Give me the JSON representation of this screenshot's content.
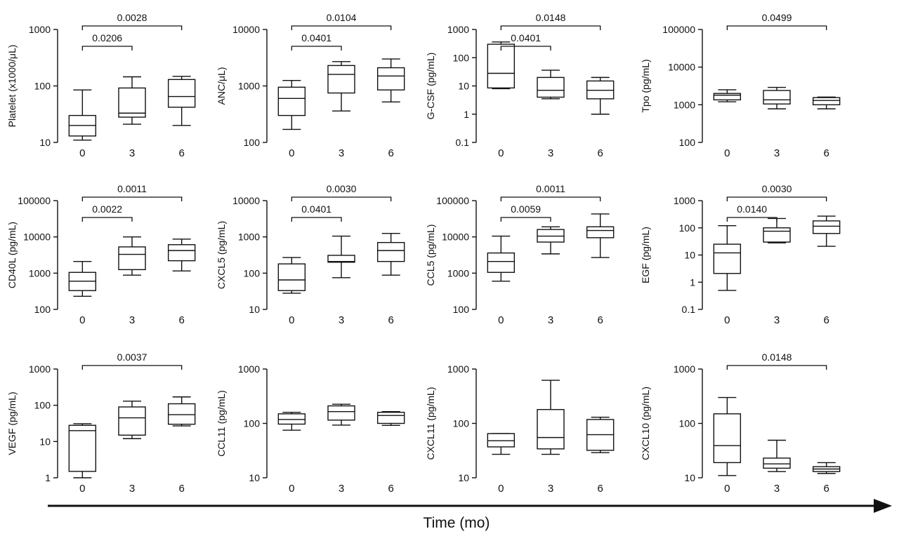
{
  "figure": {
    "xlabel": "Time (mo)",
    "colors": {
      "ink": "#111111",
      "background": "#ffffff"
    }
  },
  "chart_data": [
    {
      "type": "box",
      "ylabel": "Platelet (x1000/μL)",
      "scale": "log",
      "ylim": [
        10,
        1000
      ],
      "yticks": [
        "10",
        "100",
        "1000"
      ],
      "categories": [
        "0",
        "3",
        "6"
      ],
      "boxes": [
        {
          "min": 11,
          "q1": 13,
          "median": 20,
          "q3": 30,
          "max": 85
        },
        {
          "min": 21,
          "q1": 28,
          "median": 33,
          "q3": 92,
          "max": 145
        },
        {
          "min": 20,
          "q1": 42,
          "median": 65,
          "q3": 130,
          "max": 148
        }
      ],
      "comparisons": [
        {
          "from": 0,
          "to": 2,
          "label": "0.0028"
        },
        {
          "from": 0,
          "to": 1,
          "label": "0.0206"
        }
      ]
    },
    {
      "type": "box",
      "ylabel": "ANC/μL)",
      "scale": "log",
      "ylim": [
        100,
        10000
      ],
      "yticks": [
        "100",
        "1000",
        "10000"
      ],
      "categories": [
        "0",
        "3",
        "6"
      ],
      "boxes": [
        {
          "min": 170,
          "q1": 300,
          "median": 600,
          "q3": 950,
          "max": 1250
        },
        {
          "min": 360,
          "q1": 750,
          "median": 1600,
          "q3": 2300,
          "max": 2700
        },
        {
          "min": 520,
          "q1": 850,
          "median": 1500,
          "q3": 2100,
          "max": 3000
        }
      ],
      "comparisons": [
        {
          "from": 0,
          "to": 2,
          "label": "0.0104"
        },
        {
          "from": 0,
          "to": 1,
          "label": "0.0401"
        }
      ]
    },
    {
      "type": "box",
      "ylabel": "G-CSF (pg/mL)",
      "scale": "log",
      "ylim": [
        0.1,
        1000
      ],
      "yticks": [
        "0.1",
        "1",
        "10",
        "100",
        "1000"
      ],
      "categories": [
        "0",
        "3",
        "6"
      ],
      "boxes": [
        {
          "min": 8,
          "q1": 8.5,
          "median": 28,
          "q3": 300,
          "max": 360
        },
        {
          "min": 3.5,
          "q1": 4,
          "median": 7,
          "q3": 20,
          "max": 36
        },
        {
          "min": 1,
          "q1": 3.5,
          "median": 7,
          "q3": 15,
          "max": 20
        }
      ],
      "comparisons": [
        {
          "from": 0,
          "to": 2,
          "label": "0.0148"
        },
        {
          "from": 0,
          "to": 1,
          "label": "0.0401"
        }
      ]
    },
    {
      "type": "box",
      "ylabel": "Tpo (pg/mL)",
      "scale": "log",
      "ylim": [
        100,
        100000
      ],
      "yticks": [
        "100",
        "1000",
        "10000",
        "100000"
      ],
      "categories": [
        "0",
        "3",
        "6"
      ],
      "boxes": [
        {
          "min": 1200,
          "q1": 1350,
          "median": 1800,
          "q3": 2000,
          "max": 2500
        },
        {
          "min": 780,
          "q1": 1050,
          "median": 1350,
          "q3": 2400,
          "max": 2900
        },
        {
          "min": 780,
          "q1": 1000,
          "median": 1300,
          "q3": 1550,
          "max": 1600
        }
      ],
      "comparisons": [
        {
          "from": 0,
          "to": 2,
          "label": "0.0499"
        }
      ]
    },
    {
      "type": "box",
      "ylabel": "CD40L (pg/mL)",
      "scale": "log",
      "ylim": [
        100,
        100000
      ],
      "yticks": [
        "100",
        "1000",
        "10000",
        "100000"
      ],
      "categories": [
        "0",
        "3",
        "6"
      ],
      "boxes": [
        {
          "min": 230,
          "q1": 330,
          "median": 600,
          "q3": 1050,
          "max": 2100
        },
        {
          "min": 880,
          "q1": 1250,
          "median": 3300,
          "q3": 5300,
          "max": 10000
        },
        {
          "min": 1150,
          "q1": 2200,
          "median": 4200,
          "q3": 6100,
          "max": 8700
        }
      ],
      "comparisons": [
        {
          "from": 0,
          "to": 2,
          "label": "0.0011"
        },
        {
          "from": 0,
          "to": 1,
          "label": "0.0022"
        }
      ]
    },
    {
      "type": "box",
      "ylabel": "CXCL5 (pg/mL)",
      "scale": "log",
      "ylim": [
        10,
        10000
      ],
      "yticks": [
        "10",
        "100",
        "1000",
        "10000"
      ],
      "categories": [
        "0",
        "3",
        "6"
      ],
      "boxes": [
        {
          "min": 28,
          "q1": 33,
          "median": 65,
          "q3": 180,
          "max": 270
        },
        {
          "min": 75,
          "q1": 200,
          "median": 210,
          "q3": 310,
          "max": 1050
        },
        {
          "min": 88,
          "q1": 210,
          "median": 420,
          "q3": 700,
          "max": 1250
        }
      ],
      "comparisons": [
        {
          "from": 0,
          "to": 2,
          "label": "0.0030"
        },
        {
          "from": 0,
          "to": 1,
          "label": "0.0401"
        }
      ]
    },
    {
      "type": "box",
      "ylabel": "CCL5 (pg/mL)",
      "scale": "log",
      "ylim": [
        100,
        100000
      ],
      "yticks": [
        "100",
        "1000",
        "10000",
        "100000"
      ],
      "categories": [
        "0",
        "3",
        "6"
      ],
      "boxes": [
        {
          "min": 600,
          "q1": 1050,
          "median": 2100,
          "q3": 3600,
          "max": 10500
        },
        {
          "min": 3400,
          "q1": 7200,
          "median": 10500,
          "q3": 16000,
          "max": 19000
        },
        {
          "min": 2700,
          "q1": 9500,
          "median": 15000,
          "q3": 19000,
          "max": 43000
        }
      ],
      "comparisons": [
        {
          "from": 0,
          "to": 2,
          "label": "0.0011"
        },
        {
          "from": 0,
          "to": 1,
          "label": "0.0059"
        }
      ]
    },
    {
      "type": "box",
      "ylabel": "EGF (pg/mL)",
      "scale": "log",
      "ylim": [
        0.1,
        1000
      ],
      "yticks": [
        "0.1",
        "1",
        "10",
        "100",
        "1000"
      ],
      "categories": [
        "0",
        "3",
        "6"
      ],
      "boxes": [
        {
          "min": 0.5,
          "q1": 2.1,
          "median": 12,
          "q3": 25,
          "max": 120
        },
        {
          "min": 28,
          "q1": 30,
          "median": 75,
          "q3": 100,
          "max": 220
        },
        {
          "min": 21,
          "q1": 62,
          "median": 115,
          "q3": 180,
          "max": 270
        }
      ],
      "comparisons": [
        {
          "from": 0,
          "to": 2,
          "label": "0.0030"
        },
        {
          "from": 0,
          "to": 1,
          "label": "0.0140"
        }
      ]
    },
    {
      "type": "box",
      "ylabel": "VEGF (pg/mL)",
      "scale": "log",
      "ylim": [
        1,
        1000
      ],
      "yticks": [
        "1",
        "10",
        "100",
        "1000"
      ],
      "categories": [
        "0",
        "3",
        "6"
      ],
      "boxes": [
        {
          "min": 1,
          "q1": 1.5,
          "median": 20,
          "q3": 28,
          "max": 31
        },
        {
          "min": 12,
          "q1": 15,
          "median": 45,
          "q3": 90,
          "max": 130
        },
        {
          "min": 27,
          "q1": 30,
          "median": 55,
          "q3": 110,
          "max": 170
        }
      ],
      "comparisons": [
        {
          "from": 0,
          "to": 2,
          "label": "0.0037"
        }
      ]
    },
    {
      "type": "box",
      "ylabel": "CCL11 (pg/mL)",
      "scale": "log",
      "ylim": [
        10,
        1000
      ],
      "yticks": [
        "10",
        "100",
        "1000"
      ],
      "categories": [
        "0",
        "3",
        "6"
      ],
      "boxes": [
        {
          "min": 75,
          "q1": 97,
          "median": 118,
          "q3": 150,
          "max": 160
        },
        {
          "min": 93,
          "q1": 115,
          "median": 165,
          "q3": 210,
          "max": 225
        },
        {
          "min": 92,
          "q1": 100,
          "median": 140,
          "q3": 160,
          "max": 165
        }
      ],
      "comparisons": []
    },
    {
      "type": "box",
      "ylabel": "CXCL11 (pg/mL)",
      "scale": "log",
      "ylim": [
        10,
        1000
      ],
      "yticks": [
        "10",
        "100",
        "1000"
      ],
      "categories": [
        "0",
        "3",
        "6"
      ],
      "boxes": [
        {
          "min": 27,
          "q1": 37,
          "median": 48,
          "q3": 65,
          "max": 65
        },
        {
          "min": 27,
          "q1": 34,
          "median": 55,
          "q3": 180,
          "max": 620
        },
        {
          "min": 29,
          "q1": 32,
          "median": 62,
          "q3": 118,
          "max": 130
        }
      ],
      "comparisons": []
    },
    {
      "type": "box",
      "ylabel": "CXCL10 (pg/mL)",
      "scale": "log",
      "ylim": [
        10,
        1000
      ],
      "yticks": [
        "10",
        "100",
        "1000"
      ],
      "categories": [
        "0",
        "3",
        "6"
      ],
      "boxes": [
        {
          "min": 11,
          "q1": 19,
          "median": 39,
          "q3": 150,
          "max": 300
        },
        {
          "min": 13,
          "q1": 15,
          "median": 18,
          "q3": 23,
          "max": 49
        },
        {
          "min": 12,
          "q1": 13,
          "median": 14.5,
          "q3": 16,
          "max": 19
        }
      ],
      "comparisons": [
        {
          "from": 0,
          "to": 2,
          "label": "0.0148"
        }
      ]
    }
  ]
}
